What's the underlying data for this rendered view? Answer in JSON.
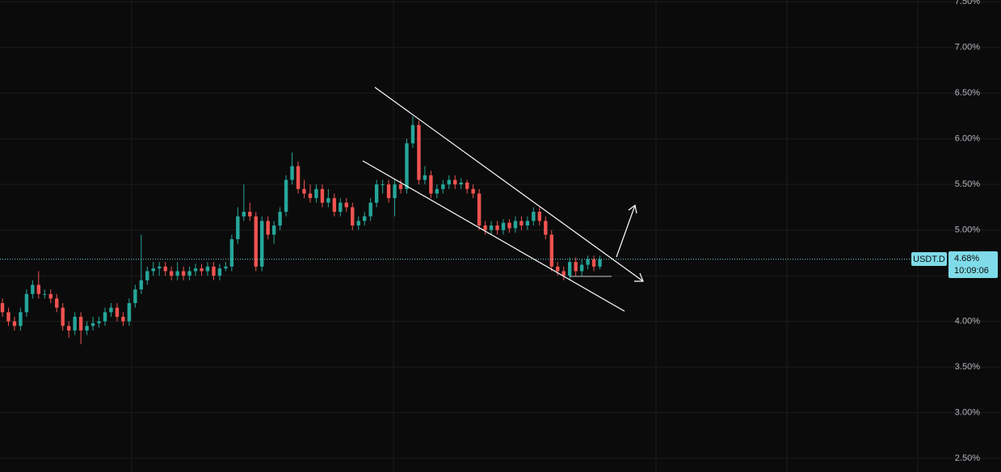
{
  "chart_data": {
    "type": "candlestick",
    "symbol": "USDT.D",
    "open": [
      4.2,
      4.1,
      4.0,
      3.95,
      4.1,
      4.3,
      4.4,
      4.3,
      4.3,
      4.25,
      4.15,
      3.95,
      3.9,
      4.05,
      3.9,
      3.95,
      3.98,
      4.0,
      4.1,
      4.15,
      4.05,
      4.0,
      4.2,
      4.35,
      4.45,
      4.55,
      4.58,
      4.6,
      4.55,
      4.5,
      4.55,
      4.5,
      4.55,
      4.58,
      4.55,
      4.6,
      4.5,
      4.58,
      4.6,
      4.9,
      5.15,
      5.2,
      5.15,
      4.6,
      5.1,
      4.95,
      5.05,
      5.2,
      5.55,
      5.7,
      5.45,
      5.4,
      5.35,
      5.45,
      5.3,
      5.35,
      5.2,
      5.3,
      5.25,
      5.05,
      5.1,
      5.15,
      5.3,
      5.5,
      5.5,
      5.35,
      5.5,
      5.45,
      5.95,
      6.15,
      5.55,
      5.6,
      5.4,
      5.45,
      5.5,
      5.55,
      5.5,
      5.52,
      5.45,
      5.4,
      5.05,
      5.0,
      5.05,
      5.0,
      5.08,
      5.02,
      5.1,
      5.05,
      5.1,
      5.2,
      5.1,
      4.95,
      4.6,
      4.55,
      4.5,
      4.65,
      4.55,
      4.62,
      4.68,
      4.6
    ],
    "high": [
      4.25,
      4.15,
      4.05,
      4.15,
      4.35,
      4.45,
      4.55,
      4.35,
      4.35,
      4.3,
      4.2,
      4.0,
      4.1,
      4.1,
      4.0,
      4.05,
      4.05,
      4.15,
      4.2,
      4.2,
      4.1,
      4.25,
      4.4,
      4.95,
      4.6,
      4.65,
      4.65,
      4.65,
      4.6,
      4.65,
      4.6,
      4.6,
      4.63,
      4.63,
      4.65,
      4.65,
      4.63,
      4.65,
      4.95,
      5.25,
      5.5,
      5.3,
      5.2,
      5.15,
      5.15,
      5.1,
      5.25,
      5.6,
      5.85,
      5.75,
      5.55,
      5.5,
      5.5,
      5.5,
      5.45,
      5.4,
      5.35,
      5.35,
      5.3,
      5.15,
      5.2,
      5.35,
      5.55,
      5.55,
      5.55,
      5.55,
      5.55,
      6.0,
      6.25,
      6.2,
      5.7,
      5.65,
      5.5,
      5.55,
      5.6,
      5.6,
      5.57,
      5.55,
      5.5,
      5.45,
      5.1,
      5.1,
      5.1,
      5.12,
      5.12,
      5.15,
      5.15,
      5.15,
      5.25,
      5.25,
      5.15,
      5.0,
      4.65,
      4.6,
      4.7,
      4.7,
      4.68,
      4.72,
      4.72,
      4.72
    ],
    "low": [
      4.05,
      3.95,
      3.9,
      3.9,
      4.05,
      4.25,
      4.25,
      4.25,
      4.2,
      4.1,
      3.9,
      3.82,
      3.85,
      3.75,
      3.85,
      3.9,
      3.93,
      3.95,
      4.05,
      4.0,
      3.95,
      3.95,
      4.15,
      4.3,
      4.4,
      4.5,
      4.5,
      4.5,
      4.45,
      4.45,
      4.45,
      4.45,
      4.5,
      4.5,
      4.5,
      4.45,
      4.45,
      4.55,
      4.55,
      4.85,
      5.1,
      5.1,
      4.55,
      4.55,
      4.9,
      4.85,
      5.0,
      5.15,
      5.5,
      5.4,
      5.35,
      5.3,
      5.3,
      5.25,
      5.25,
      5.15,
      5.15,
      5.2,
      5.0,
      5.0,
      5.05,
      5.1,
      5.25,
      5.4,
      5.3,
      5.15,
      5.4,
      5.4,
      5.9,
      5.5,
      5.5,
      5.35,
      5.35,
      5.4,
      5.45,
      5.45,
      5.45,
      5.4,
      5.35,
      5.0,
      4.95,
      4.95,
      4.95,
      4.95,
      4.97,
      4.97,
      5.0,
      5.0,
      5.05,
      5.05,
      4.9,
      4.55,
      4.5,
      4.45,
      4.45,
      4.5,
      4.5,
      4.57,
      4.55,
      4.57
    ],
    "close": [
      4.1,
      4.0,
      3.95,
      4.1,
      4.3,
      4.4,
      4.3,
      4.3,
      4.25,
      4.15,
      3.95,
      3.9,
      4.05,
      3.9,
      3.95,
      3.98,
      4.0,
      4.1,
      4.15,
      4.05,
      4.0,
      4.2,
      4.35,
      4.45,
      4.55,
      4.58,
      4.6,
      4.55,
      4.5,
      4.55,
      4.5,
      4.55,
      4.58,
      4.55,
      4.6,
      4.5,
      4.58,
      4.6,
      4.9,
      5.15,
      5.2,
      5.15,
      4.6,
      5.1,
      4.95,
      5.05,
      5.2,
      5.55,
      5.7,
      5.45,
      5.4,
      5.35,
      5.45,
      5.3,
      5.35,
      5.2,
      5.3,
      5.25,
      5.05,
      5.1,
      5.15,
      5.3,
      5.5,
      5.5,
      5.35,
      5.5,
      5.45,
      5.95,
      6.15,
      5.55,
      5.6,
      5.4,
      5.45,
      5.5,
      5.55,
      5.5,
      5.52,
      5.45,
      5.4,
      5.05,
      5.0,
      5.05,
      5.0,
      5.08,
      5.02,
      5.1,
      5.05,
      5.1,
      5.2,
      5.1,
      4.95,
      4.6,
      4.55,
      4.5,
      4.65,
      4.55,
      4.62,
      4.68,
      4.6,
      4.68
    ],
    "up_color": "#26a69a",
    "down_color": "#ef5350",
    "ylim": [
      2.35,
      7.52
    ],
    "yticks": [
      {
        "value": 2.5,
        "label": "2.50%"
      },
      {
        "value": 3,
        "label": "3.00%"
      },
      {
        "value": 3.5,
        "label": "3.50%"
      },
      {
        "value": 4,
        "label": "4.00%"
      },
      {
        "value": 4.5,
        "label": "4.50%"
      },
      {
        "value": 5,
        "label": "5.00%"
      },
      {
        "value": 5.5,
        "label": "5.50%"
      },
      {
        "value": 6,
        "label": "6.00%"
      },
      {
        "value": 6.5,
        "label": "6.50%"
      },
      {
        "value": 7,
        "label": "7.00%"
      },
      {
        "value": 7.5,
        "label": "7.50%"
      }
    ],
    "grid": true,
    "last_price": 4.68,
    "last_price_label": "4.68%",
    "countdown": "10:09:06"
  }
}
